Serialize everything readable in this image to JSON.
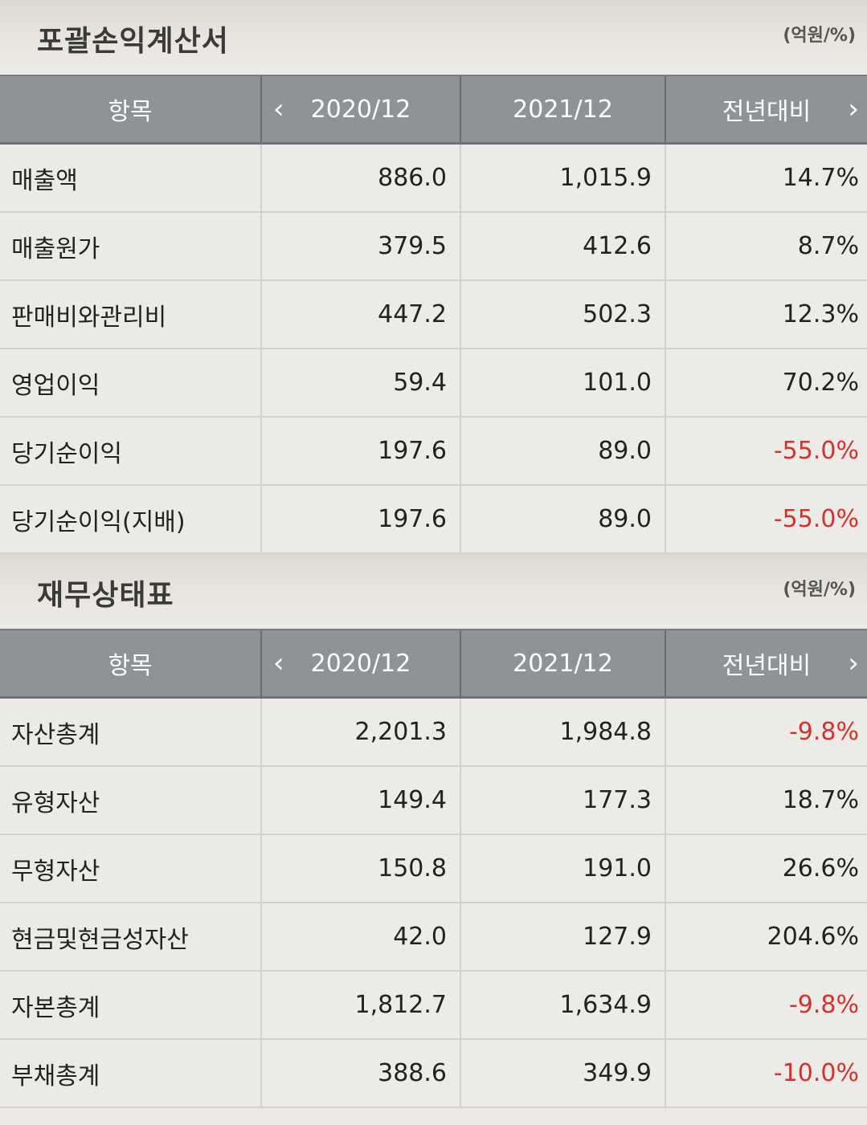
{
  "income": {
    "title": "포괄손익계산서",
    "unit": "(억원/%)",
    "headers": [
      "항목",
      "2020/12",
      "2021/12",
      "전년대비"
    ],
    "rows": [
      {
        "label": "매출액",
        "v2020": "886.0",
        "v2021": "1,015.9",
        "yoy": "14.7%"
      },
      {
        "label": "매출원가",
        "v2020": "379.5",
        "v2021": "412.6",
        "yoy": "8.7%"
      },
      {
        "label": "판매비와관리비",
        "v2020": "447.2",
        "v2021": "502.3",
        "yoy": "12.3%"
      },
      {
        "label": "영업이익",
        "v2020": "59.4",
        "v2021": "101.0",
        "yoy": "70.2%"
      },
      {
        "label": "당기순이익",
        "v2020": "197.6",
        "v2021": "89.0",
        "yoy": "-55.0%"
      },
      {
        "label": "당기순이익(지배)",
        "v2020": "197.6",
        "v2021": "89.0",
        "yoy": "-55.0%"
      }
    ]
  },
  "balance": {
    "title": "재무상태표",
    "unit": "(억원/%)",
    "headers": [
      "항목",
      "2020/12",
      "2021/12",
      "전년대비"
    ],
    "rows": [
      {
        "label": "자산총계",
        "v2020": "2,201.3",
        "v2021": "1,984.8",
        "yoy": "-9.8%"
      },
      {
        "label": "유형자산",
        "v2020": "149.4",
        "v2021": "177.3",
        "yoy": "18.7%"
      },
      {
        "label": "무형자산",
        "v2020": "150.8",
        "v2021": "191.0",
        "yoy": "26.6%"
      },
      {
        "label": "현금및현금성자산",
        "v2020": "42.0",
        "v2021": "127.9",
        "yoy": "204.6%"
      },
      {
        "label": "자본총계",
        "v2020": "1,812.7",
        "v2021": "1,634.9",
        "yoy": "-9.8%"
      },
      {
        "label": "부채총계",
        "v2020": "388.6",
        "v2021": "349.9",
        "yoy": "-10.0%"
      }
    ]
  },
  "nav": {
    "prev_icon": "chevron-left-icon",
    "next_icon": "chevron-right-icon"
  },
  "colors": {
    "negative": "#d9302c",
    "header_bg": "#8f9297"
  }
}
